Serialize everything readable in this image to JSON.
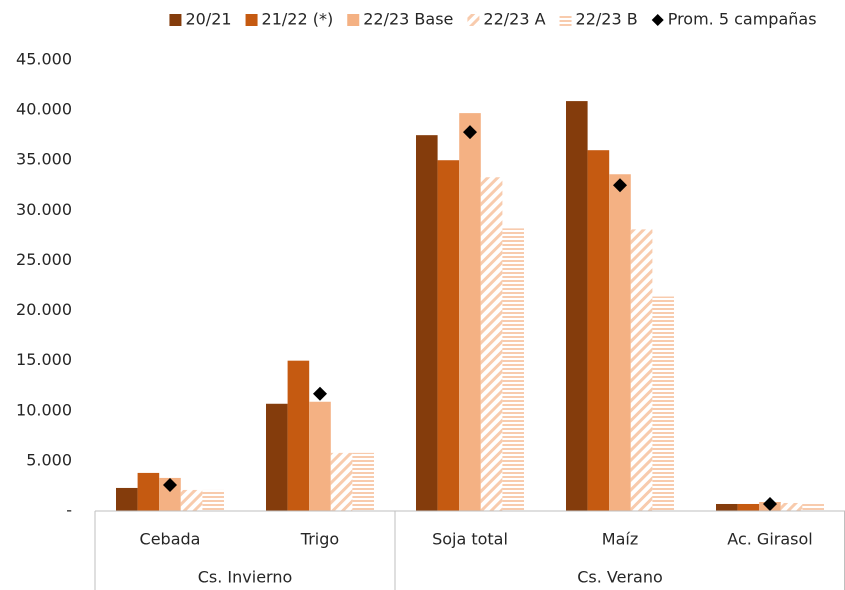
{
  "chart_data": {
    "type": "bar",
    "categories": [
      "Cebada",
      "Trigo",
      "Soja total",
      "Maíz",
      "Ac. Girasol"
    ],
    "groups": [
      {
        "name": "Cs. Invierno",
        "categories": [
          "Cebada",
          "Trigo"
        ]
      },
      {
        "name": "Cs. Verano",
        "categories": [
          "Soja total",
          "Maíz",
          "Ac. Girasol"
        ]
      }
    ],
    "series": [
      {
        "name": "20/21",
        "color": "#843c0c",
        "values": [
          2300,
          10700,
          37500,
          40900,
          700
        ]
      },
      {
        "name": "21/22 (*)",
        "color": "#c55a11",
        "values": [
          3800,
          15000,
          35000,
          36000,
          700
        ]
      },
      {
        "name": "22/23 Base",
        "color": "#f4b183",
        "values": [
          3300,
          10900,
          39700,
          33600,
          900
        ]
      },
      {
        "name": "22/23 A",
        "color": "#f8cbad",
        "pattern": "diagonal",
        "values": [
          2100,
          5800,
          33300,
          28100,
          800
        ]
      },
      {
        "name": "22/23 B",
        "color": "#f8cbad",
        "pattern": "horizontal",
        "values": [
          2100,
          5800,
          28200,
          21400,
          700
        ]
      },
      {
        "name": "Prom. 5 campañas",
        "color": "#000000",
        "marker": "diamond",
        "values": [
          2600,
          11700,
          37800,
          32500,
          700
        ]
      }
    ],
    "ylim": [
      0,
      45000
    ],
    "yticks": [
      {
        "value": 0,
        "label": "-"
      },
      {
        "value": 5000,
        "label": "5.000"
      },
      {
        "value": 10000,
        "label": "10.000"
      },
      {
        "value": 15000,
        "label": "15.000"
      },
      {
        "value": 20000,
        "label": "20.000"
      },
      {
        "value": 25000,
        "label": "25.000"
      },
      {
        "value": 30000,
        "label": "30.000"
      },
      {
        "value": 35000,
        "label": "35.000"
      },
      {
        "value": 40000,
        "label": "40.000"
      },
      {
        "value": 45000,
        "label": "45.000"
      }
    ],
    "grid": false,
    "legend": "top"
  }
}
